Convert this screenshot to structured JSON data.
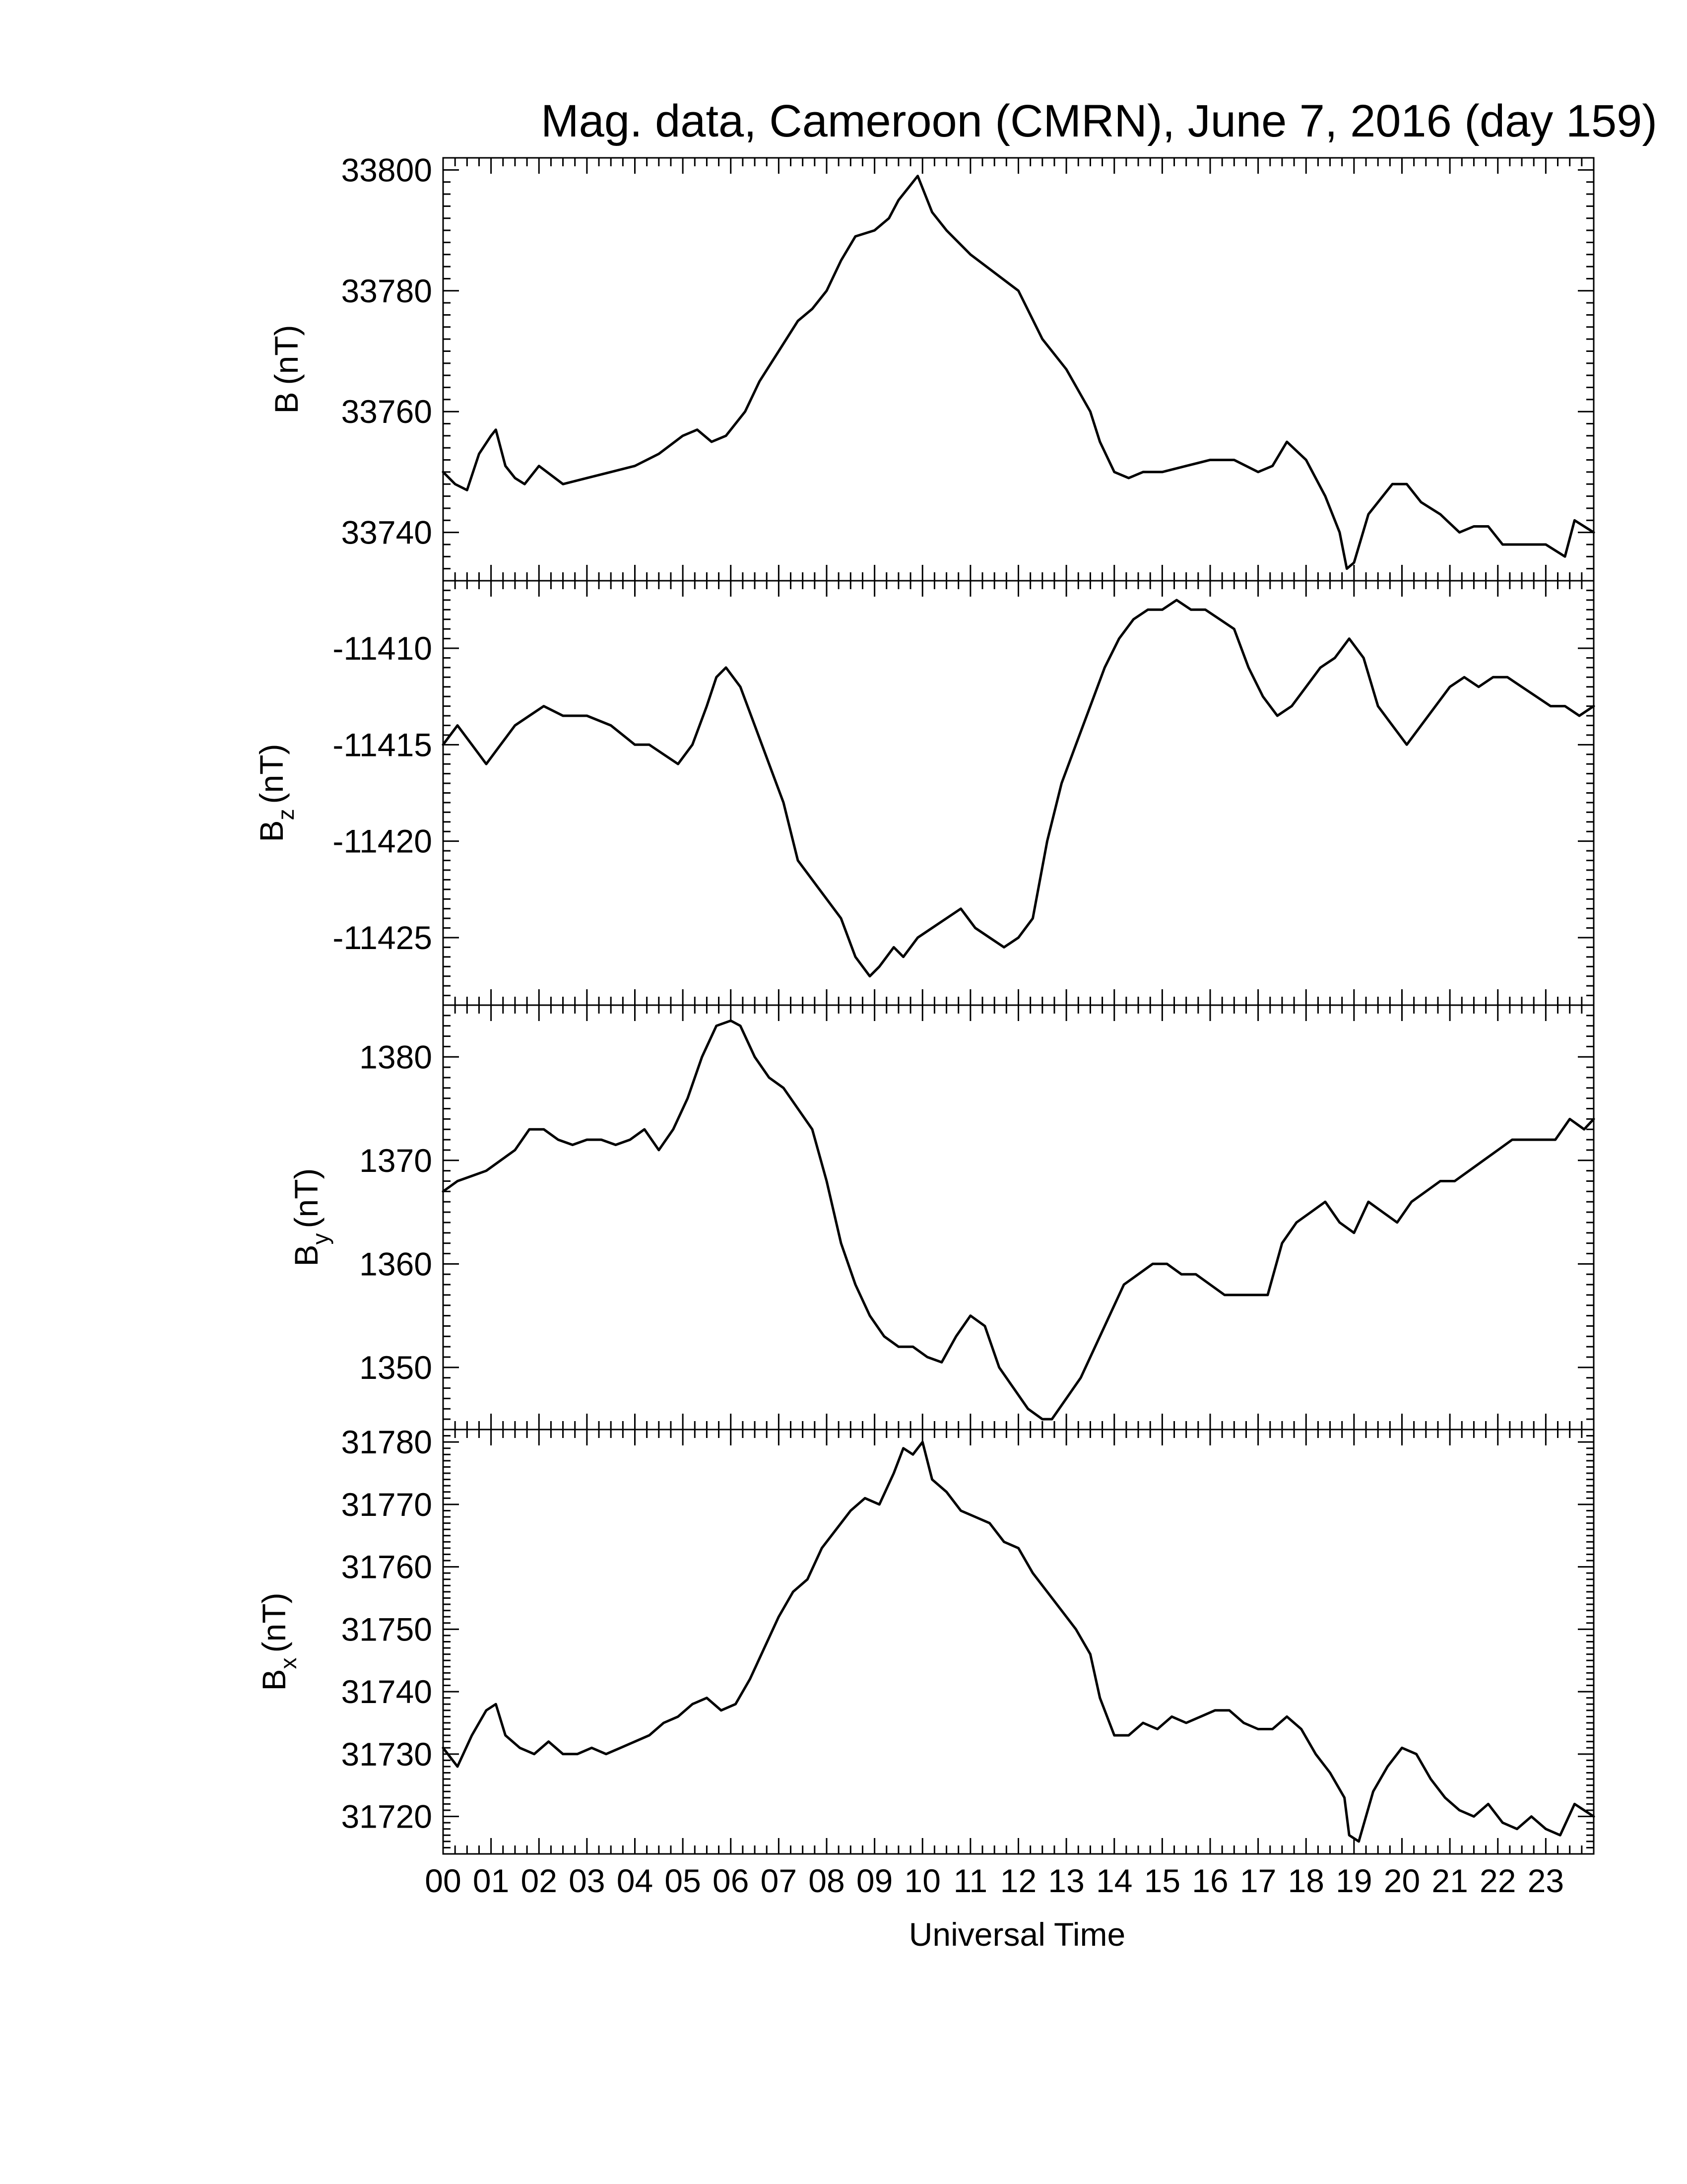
{
  "chart_data": {
    "type": "line",
    "title": "Mag. data, Cameroon (CMRN), June 7, 2016 (day 159)",
    "xlabel": "Universal Time",
    "x_ticks": [
      "00",
      "01",
      "02",
      "03",
      "04",
      "05",
      "06",
      "07",
      "08",
      "09",
      "10",
      "11",
      "12",
      "13",
      "14",
      "15",
      "16",
      "17",
      "18",
      "19",
      "20",
      "21",
      "22",
      "23"
    ],
    "xlim": [
      0,
      24
    ],
    "line_color": "#000000",
    "grid": false,
    "panels": [
      {
        "ylabel": "B (nT)",
        "ylabel_base": "B",
        "ylabel_sub": "",
        "ylabel_unit": "(nT)",
        "ylim": [
          33732,
          33802
        ],
        "yticks": [
          33740,
          33760,
          33780,
          33800
        ],
        "x": [
          0.0,
          0.25,
          0.5,
          0.75,
          1.0,
          1.1,
          1.3,
          1.5,
          1.7,
          2.0,
          2.5,
          3.0,
          3.5,
          4.0,
          4.5,
          5.0,
          5.3,
          5.6,
          5.9,
          6.3,
          6.6,
          7.0,
          7.4,
          7.7,
          8.0,
          8.3,
          8.6,
          9.0,
          9.3,
          9.5,
          9.7,
          9.9,
          10.2,
          10.5,
          11.0,
          11.5,
          12.0,
          12.5,
          13.0,
          13.5,
          13.7,
          14.0,
          14.3,
          14.6,
          15.0,
          15.5,
          16.0,
          16.5,
          17.0,
          17.3,
          17.6,
          18.0,
          18.4,
          18.7,
          18.85,
          19.0,
          19.3,
          19.6,
          19.8,
          20.1,
          20.4,
          20.8,
          21.2,
          21.5,
          21.8,
          22.1,
          22.5,
          22.8,
          23.0,
          23.2,
          23.4,
          23.6,
          23.8,
          24.0
        ],
        "values": [
          33750,
          33748,
          33747,
          33753,
          33756,
          33757,
          33751,
          33749,
          33748,
          33751,
          33748,
          33749,
          33750,
          33751,
          33753,
          33756,
          33757,
          33755,
          33756,
          33760,
          33765,
          33770,
          33775,
          33777,
          33780,
          33785,
          33789,
          33790,
          33792,
          33795,
          33797,
          33799,
          33793,
          33790,
          33786,
          33783,
          33780,
          33772,
          33767,
          33760,
          33755,
          33750,
          33749,
          33750,
          33750,
          33751,
          33752,
          33752,
          33750,
          33751,
          33755,
          33752,
          33746,
          33740,
          33734,
          33735,
          33743,
          33746,
          33748,
          33748,
          33745,
          33743,
          33740,
          33741,
          33741,
          33738,
          33738,
          33738,
          33738,
          33737,
          33736,
          33742,
          33741,
          33740
        ]
      },
      {
        "ylabel": "Bz (nT)",
        "ylabel_base": "B",
        "ylabel_sub": "z",
        "ylabel_unit": "(nT)",
        "ylim": [
          -11428.5,
          -11406.5
        ],
        "yticks": [
          -11410,
          -11415,
          -11420,
          -11425
        ],
        "x": [
          0.0,
          0.3,
          0.6,
          0.9,
          1.2,
          1.5,
          1.8,
          2.1,
          2.5,
          3.0,
          3.5,
          4.0,
          4.3,
          4.6,
          4.9,
          5.2,
          5.5,
          5.7,
          5.9,
          6.2,
          6.5,
          6.8,
          7.1,
          7.4,
          7.7,
          8.0,
          8.3,
          8.6,
          8.9,
          9.1,
          9.4,
          9.6,
          9.9,
          10.2,
          10.5,
          10.8,
          11.1,
          11.4,
          11.7,
          12.0,
          12.3,
          12.6,
          12.9,
          13.2,
          13.5,
          13.8,
          14.1,
          14.4,
          14.7,
          15.0,
          15.3,
          15.6,
          15.9,
          16.2,
          16.5,
          16.8,
          17.1,
          17.4,
          17.7,
          18.0,
          18.3,
          18.6,
          18.9,
          19.2,
          19.5,
          19.8,
          20.1,
          20.4,
          20.7,
          21.0,
          21.3,
          21.6,
          21.9,
          22.2,
          22.5,
          22.8,
          23.1,
          23.4,
          23.7,
          24.0
        ],
        "values": [
          -11415,
          -11414,
          -11415,
          -11416,
          -11415,
          -11414,
          -11413.5,
          -11413,
          -11413.5,
          -11413.5,
          -11414,
          -11415,
          -11415,
          -11415.5,
          -11416,
          -11415,
          -11413,
          -11411.5,
          -11411,
          -11412,
          -11414,
          -11416,
          -11418,
          -11421,
          -11422,
          -11423,
          -11424,
          -11426,
          -11427,
          -11426.5,
          -11425.5,
          -11426,
          -11425,
          -11424.5,
          -11424,
          -11423.5,
          -11424.5,
          -11425,
          -11425.5,
          -11425,
          -11424,
          -11420,
          -11417,
          -11415,
          -11413,
          -11411,
          -11409.5,
          -11408.5,
          -11408,
          -11408,
          -11407.5,
          -11408,
          -11408,
          -11408.5,
          -11409,
          -11411,
          -11412.5,
          -11413.5,
          -11413,
          -11412,
          -11411,
          -11410.5,
          -11409.5,
          -11410.5,
          -11413,
          -11414,
          -11415,
          -11414,
          -11413,
          -11412,
          -11411.5,
          -11412,
          -11411.5,
          -11411.5,
          -11412,
          -11412.5,
          -11413,
          -11413,
          -11413.5,
          -11413
        ]
      },
      {
        "ylabel": "By (nT)",
        "ylabel_base": "B",
        "ylabel_sub": "y",
        "ylabel_unit": "(nT)",
        "ylim": [
          1344,
          1385
        ],
        "yticks": [
          1350,
          1360,
          1370,
          1380
        ],
        "x": [
          0.0,
          0.3,
          0.6,
          0.9,
          1.2,
          1.5,
          1.8,
          2.1,
          2.4,
          2.7,
          3.0,
          3.3,
          3.6,
          3.9,
          4.2,
          4.5,
          4.8,
          5.1,
          5.4,
          5.7,
          6.0,
          6.2,
          6.5,
          6.8,
          7.1,
          7.4,
          7.7,
          8.0,
          8.3,
          8.6,
          8.9,
          9.2,
          9.5,
          9.8,
          10.1,
          10.4,
          10.7,
          11.0,
          11.3,
          11.6,
          11.9,
          12.2,
          12.5,
          12.7,
          13.0,
          13.3,
          13.6,
          13.9,
          14.2,
          14.5,
          14.8,
          15.1,
          15.4,
          15.7,
          16.0,
          16.3,
          16.6,
          16.9,
          17.2,
          17.5,
          17.8,
          18.1,
          18.4,
          18.7,
          19.0,
          19.3,
          19.6,
          19.9,
          20.2,
          20.5,
          20.8,
          21.1,
          21.4,
          21.7,
          22.0,
          22.3,
          22.6,
          22.9,
          23.2,
          23.5,
          23.8,
          24.0
        ],
        "values": [
          1367,
          1368,
          1368.5,
          1369,
          1370,
          1371,
          1373,
          1373,
          1372,
          1371.5,
          1372,
          1372,
          1371.5,
          1372,
          1373,
          1371,
          1373,
          1376,
          1380,
          1383,
          1383.5,
          1383,
          1380,
          1378,
          1377,
          1375,
          1373,
          1368,
          1362,
          1358,
          1355,
          1353,
          1352,
          1352,
          1351,
          1350.5,
          1353,
          1355,
          1354,
          1350,
          1348,
          1346,
          1345,
          1345,
          1347,
          1349,
          1352,
          1355,
          1358,
          1359,
          1360,
          1360,
          1359,
          1359,
          1358,
          1357,
          1357,
          1357,
          1357,
          1362,
          1364,
          1365,
          1366,
          1364,
          1363,
          1366,
          1365,
          1364,
          1366,
          1367,
          1368,
          1368,
          1369,
          1370,
          1371,
          1372,
          1372,
          1372,
          1372,
          1374,
          1373,
          1374
        ]
      },
      {
        "ylabel": "Bx (nT)",
        "ylabel_base": "B",
        "ylabel_sub": "x",
        "ylabel_unit": "(nT)",
        "ylim": [
          31714,
          31782
        ],
        "yticks": [
          31720,
          31730,
          31740,
          31750,
          31760,
          31770,
          31780
        ],
        "x": [
          0.0,
          0.3,
          0.6,
          0.9,
          1.1,
          1.3,
          1.6,
          1.9,
          2.2,
          2.5,
          2.8,
          3.1,
          3.4,
          3.7,
          4.0,
          4.3,
          4.6,
          4.9,
          5.2,
          5.5,
          5.8,
          6.1,
          6.4,
          6.7,
          7.0,
          7.3,
          7.6,
          7.9,
          8.2,
          8.5,
          8.8,
          9.1,
          9.4,
          9.6,
          9.8,
          10.0,
          10.2,
          10.5,
          10.8,
          11.1,
          11.4,
          11.7,
          12.0,
          12.3,
          12.6,
          12.9,
          13.2,
          13.5,
          13.7,
          14.0,
          14.3,
          14.6,
          14.9,
          15.2,
          15.5,
          15.8,
          16.1,
          16.4,
          16.7,
          17.0,
          17.3,
          17.6,
          17.9,
          18.2,
          18.5,
          18.8,
          18.9,
          19.1,
          19.4,
          19.7,
          20.0,
          20.3,
          20.6,
          20.9,
          21.2,
          21.5,
          21.8,
          22.1,
          22.4,
          22.7,
          23.0,
          23.3,
          23.6,
          23.8,
          24.0
        ],
        "values": [
          31731,
          31728,
          31733,
          31737,
          31738,
          31733,
          31731,
          31730,
          31732,
          31730,
          31730,
          31731,
          31730,
          31731,
          31732,
          31733,
          31735,
          31736,
          31738,
          31739,
          31737,
          31738,
          31742,
          31747,
          31752,
          31756,
          31758,
          31763,
          31766,
          31769,
          31771,
          31770,
          31775,
          31779,
          31778,
          31780,
          31774,
          31772,
          31769,
          31768,
          31767,
          31764,
          31763,
          31759,
          31756,
          31753,
          31750,
          31746,
          31739,
          31733,
          31733,
          31735,
          31734,
          31736,
          31735,
          31736,
          31737,
          31737,
          31735,
          31734,
          31734,
          31736,
          31734,
          31730,
          31727,
          31723,
          31717,
          31716,
          31724,
          31728,
          31731,
          31730,
          31726,
          31723,
          31721,
          31720,
          31722,
          31719,
          31718,
          31720,
          31718,
          31717,
          31722,
          31721,
          31720
        ]
      }
    ]
  }
}
